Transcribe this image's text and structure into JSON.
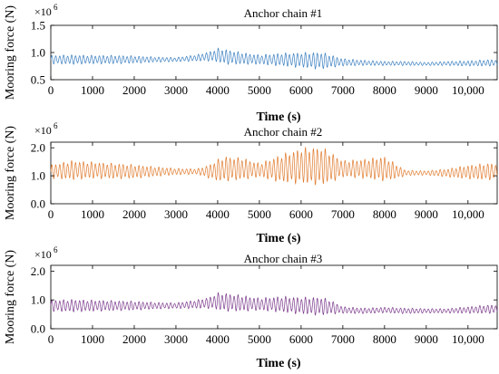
{
  "chart_data": [
    {
      "type": "line",
      "title": "Anchor chain #1",
      "xlabel": "Time (s)",
      "ylabel": "Mooring force (N)",
      "y_multiplier": "×10",
      "y_exponent": "6",
      "xlim": [
        0,
        10700
      ],
      "ylim": [
        0.5,
        1.5
      ],
      "xticks": [
        0,
        1000,
        2000,
        3000,
        4000,
        5000,
        6000,
        7000,
        8000,
        9000,
        10000
      ],
      "xtick_labels": [
        "0",
        "1000",
        "2000",
        "3000",
        "4000",
        "5000",
        "6000",
        "7000",
        "8000",
        "9000",
        "10,000"
      ],
      "yticks": [
        0.5,
        1.0,
        1.5
      ],
      "ytick_labels": [
        "0.5",
        "1.0",
        "1.5"
      ],
      "grid": false,
      "series": [
        {
          "color": "#3a7fc0",
          "mean": 0.87,
          "envelope": {
            "t": [
              0,
              500,
              1000,
              1500,
              2000,
              2500,
              3000,
              3500,
              3800,
              4000,
              4200,
              4600,
              5000,
              5500,
              6000,
              6500,
              6700,
              7000,
              7500,
              8000,
              8500,
              9000,
              9500,
              10000,
              10500,
              10700
            ],
            "amplitude": [
              0.08,
              0.09,
              0.08,
              0.08,
              0.07,
              0.05,
              0.04,
              0.06,
              0.09,
              0.13,
              0.14,
              0.11,
              0.09,
              0.12,
              0.14,
              0.16,
              0.12,
              0.07,
              0.05,
              0.04,
              0.04,
              0.03,
              0.04,
              0.05,
              0.06,
              0.06
            ],
            "mean_shift": [
              0.0,
              0.0,
              0.0,
              0.0,
              0.0,
              0.0,
              0.0,
              0.03,
              0.06,
              0.08,
              0.05,
              0.02,
              0.0,
              0.0,
              -0.01,
              -0.02,
              -0.03,
              -0.05,
              -0.06,
              -0.07,
              -0.07,
              -0.08,
              -0.07,
              -0.07,
              -0.06,
              -0.06
            ]
          }
        }
      ]
    },
    {
      "type": "line",
      "title": "Anchor chain #2",
      "xlabel": "Time (s)",
      "ylabel": "Mooring force (N)",
      "y_multiplier": "×10",
      "y_exponent": "6",
      "xlim": [
        0,
        10700
      ],
      "ylim": [
        0.0,
        2.2
      ],
      "xticks": [
        0,
        1000,
        2000,
        3000,
        4000,
        5000,
        6000,
        7000,
        8000,
        9000,
        10000
      ],
      "xtick_labels": [
        "0",
        "1000",
        "2000",
        "3000",
        "4000",
        "5000",
        "6000",
        "7000",
        "8000",
        "9000",
        "10,000"
      ],
      "yticks": [
        0.0,
        1.0,
        2.0
      ],
      "ytick_labels": [
        "0.0",
        "1.0",
        "2.0"
      ],
      "grid": false,
      "series": [
        {
          "color": "#e07b2e",
          "mean": 1.15,
          "envelope": {
            "t": [
              0,
              500,
              1000,
              1500,
              2000,
              2500,
              3000,
              3500,
              3800,
              4000,
              4200,
              4600,
              5000,
              5500,
              6000,
              6500,
              6700,
              7000,
              7500,
              8000,
              8300,
              8500,
              9000,
              9500,
              10000,
              10500,
              10700
            ],
            "amplitude": [
              0.25,
              0.35,
              0.3,
              0.28,
              0.25,
              0.18,
              0.12,
              0.1,
              0.25,
              0.4,
              0.45,
              0.4,
              0.25,
              0.5,
              0.65,
              0.7,
              0.55,
              0.3,
              0.35,
              0.45,
              0.25,
              0.1,
              0.08,
              0.15,
              0.25,
              0.3,
              0.3
            ],
            "mean_shift": [
              0.0,
              0.05,
              0.05,
              0.02,
              0.0,
              0.0,
              0.0,
              0.0,
              0.0,
              0.05,
              0.1,
              0.1,
              0.05,
              0.1,
              0.2,
              0.2,
              0.15,
              0.1,
              0.1,
              0.1,
              0.0,
              -0.05,
              -0.05,
              -0.05,
              -0.02,
              0.0,
              0.0
            ]
          }
        }
      ]
    },
    {
      "type": "line",
      "title": "Anchor chain #3",
      "xlabel": "Time (s)",
      "ylabel": "Mooring force (N)",
      "y_multiplier": "×10",
      "y_exponent": "6",
      "xlim": [
        0,
        10700
      ],
      "ylim": [
        0.0,
        2.2
      ],
      "xticks": [
        0,
        1000,
        2000,
        3000,
        4000,
        5000,
        6000,
        7000,
        8000,
        9000,
        10000
      ],
      "xtick_labels": [
        "0",
        "1000",
        "2000",
        "3000",
        "4000",
        "5000",
        "6000",
        "7000",
        "8000",
        "9000",
        "10,000"
      ],
      "yticks": [
        0.0,
        1.0,
        2.0
      ],
      "ytick_labels": [
        "0.0",
        "1.0",
        "2.0"
      ],
      "grid": false,
      "series": [
        {
          "color": "#7b3a8c",
          "mean": 0.8,
          "envelope": {
            "t": [
              0,
              500,
              1000,
              1500,
              2000,
              2500,
              3000,
              3500,
              3800,
              4000,
              4200,
              4600,
              5000,
              5500,
              6000,
              6500,
              6700,
              7000,
              7500,
              8000,
              8500,
              9000,
              9500,
              10000,
              10500,
              10700
            ],
            "amplitude": [
              0.2,
              0.22,
              0.2,
              0.18,
              0.16,
              0.12,
              0.1,
              0.15,
              0.2,
              0.3,
              0.32,
              0.28,
              0.22,
              0.28,
              0.3,
              0.32,
              0.25,
              0.12,
              0.1,
              0.1,
              0.1,
              0.08,
              0.08,
              0.12,
              0.15,
              0.15
            ],
            "mean_shift": [
              0.0,
              0.0,
              0.0,
              0.0,
              0.0,
              0.0,
              0.0,
              0.05,
              0.1,
              0.15,
              0.12,
              0.08,
              0.05,
              0.05,
              0.0,
              -0.02,
              -0.05,
              -0.15,
              -0.18,
              -0.15,
              -0.18,
              -0.18,
              -0.18,
              -0.15,
              -0.12,
              -0.12
            ]
          }
        }
      ]
    }
  ]
}
